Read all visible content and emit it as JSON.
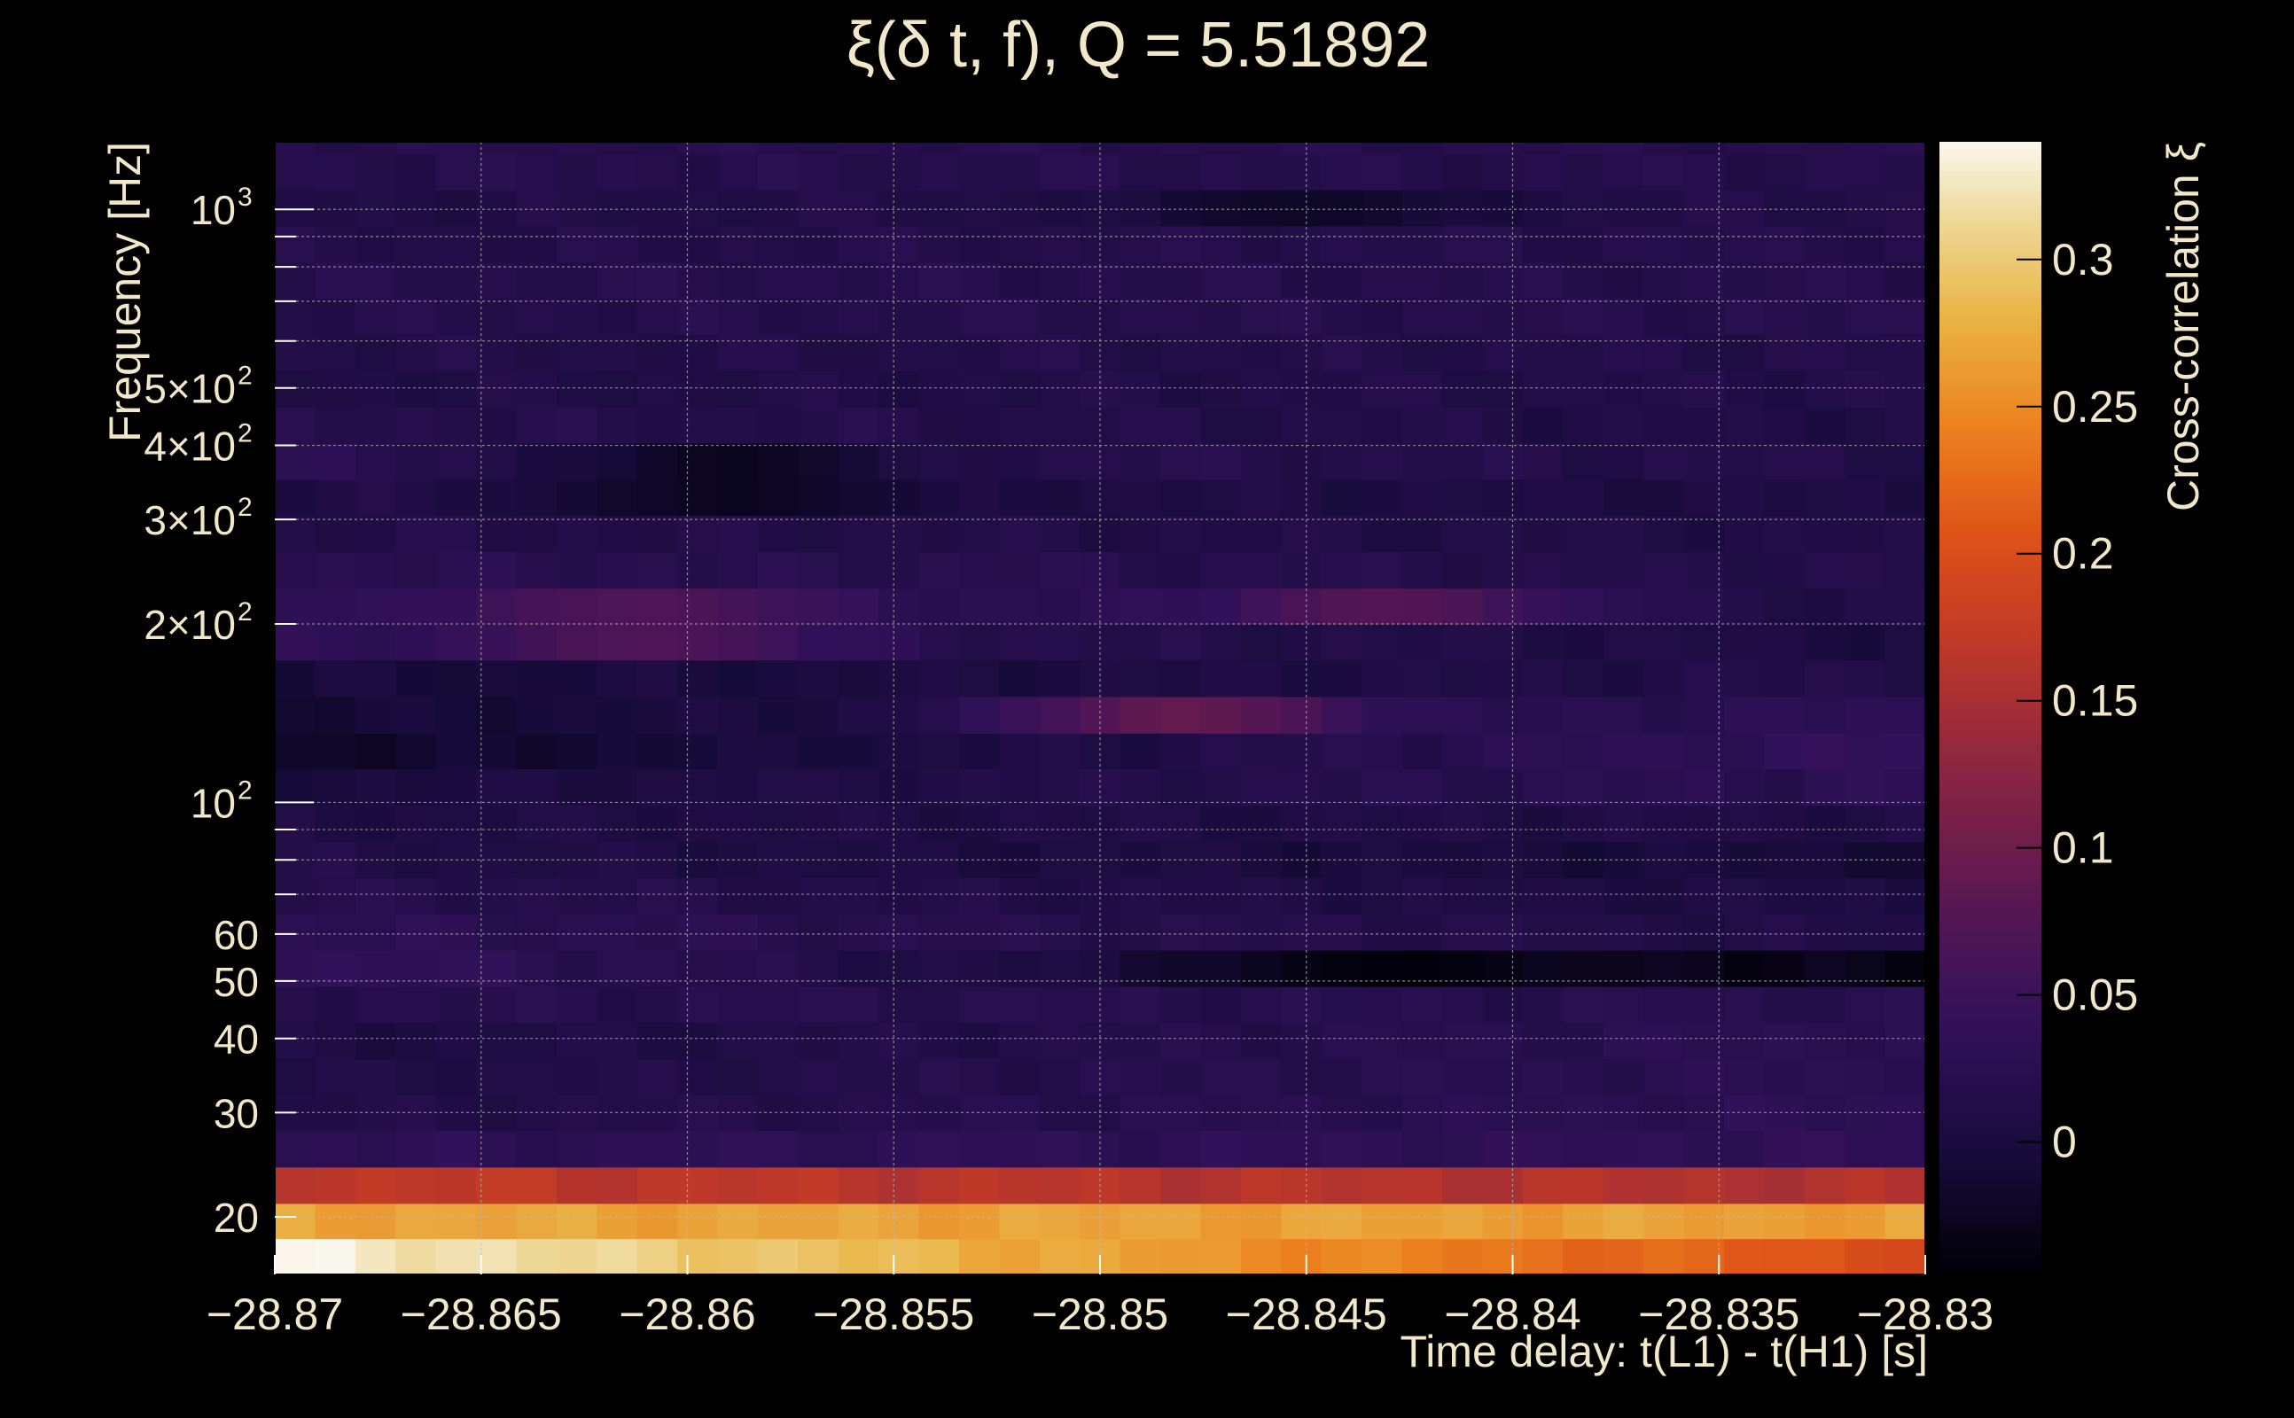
{
  "chart_data": {
    "type": "heatmap",
    "title": "ξ(δ t, f), Q = 5.51892",
    "xlabel": "Time delay: t(L1) - t(H1) [s]",
    "ylabel": "Frequency [Hz]",
    "zlabel": "Cross-correlation ξ",
    "x_range": [
      -28.87,
      -28.83
    ],
    "y_range": [
      16,
      1300
    ],
    "y_scale": "log",
    "z_range": [
      -0.045,
      0.34
    ],
    "grid": true,
    "x_ticks": [
      -28.87,
      -28.865,
      -28.86,
      -28.855,
      -28.85,
      -28.845,
      -28.84,
      -28.835,
      -28.83
    ],
    "x_tick_labels": [
      "−28.87",
      "−28.865",
      "−28.86",
      "−28.855",
      "−28.85",
      "−28.845",
      "−28.84",
      "−28.835",
      "−28.83"
    ],
    "y_tick_labels": [
      {
        "value": 20,
        "label": "20"
      },
      {
        "value": 30,
        "label": "30"
      },
      {
        "value": 40,
        "label": "40"
      },
      {
        "value": 50,
        "label": "50"
      },
      {
        "value": 60,
        "label": "60"
      },
      {
        "value": 100,
        "label": "10",
        "sup": "2"
      },
      {
        "value": 200,
        "label": "2×10",
        "sup": "2"
      },
      {
        "value": 300,
        "label": "3×10",
        "sup": "2"
      },
      {
        "value": 400,
        "label": "4×10",
        "sup": "2"
      },
      {
        "value": 500,
        "label": "5×10",
        "sup": "2"
      },
      {
        "value": 1000,
        "label": "10",
        "sup": "3"
      }
    ],
    "colorbar_ticks": [
      {
        "value": 0,
        "label": "0"
      },
      {
        "value": 0.05,
        "label": "0.05"
      },
      {
        "value": 0.1,
        "label": "0.1"
      },
      {
        "value": 0.15,
        "label": "0.15"
      },
      {
        "value": 0.2,
        "label": "0.2"
      },
      {
        "value": 0.25,
        "label": "0.25"
      },
      {
        "value": 0.3,
        "label": "0.3"
      }
    ],
    "x_bins": 41,
    "frequency_rows": [
      {
        "f_low": 16.0,
        "f_high": 18.4,
        "start": 0.335,
        "end": 0.2
      },
      {
        "f_low": 18.4,
        "f_high": 21.1,
        "start": 0.27,
        "end": 0.265
      },
      {
        "f_low": 21.1,
        "f_high": 24.3,
        "start": 0.17,
        "end": 0.155
      },
      {
        "f_low": 24.3,
        "f_high": 28.0,
        "start": 0.03,
        "end": 0.035
      },
      {
        "f_low": 28.0,
        "f_high": 32.2,
        "start": 0.012,
        "end": 0.03
      },
      {
        "f_low": 32.2,
        "f_high": 37.0,
        "start": 0.01,
        "end": 0.028
      },
      {
        "f_low": 37.0,
        "f_high": 42.6,
        "start": 0.005,
        "end": 0.028
      },
      {
        "f_low": 42.6,
        "f_high": 49.0,
        "start": 0.02,
        "end": 0.022
      },
      {
        "f_low": 49.0,
        "f_high": 56.4,
        "start": 0.04,
        "end": -0.035
      },
      {
        "f_low": 56.4,
        "f_high": 64.9,
        "start": 0.03,
        "end": 0.01
      },
      {
        "f_low": 64.9,
        "f_high": 74.7,
        "start": 0.02,
        "end": 0.005
      },
      {
        "f_low": 74.7,
        "f_high": 86.0,
        "start": 0.012,
        "end": -0.005
      },
      {
        "f_low": 86.0,
        "f_high": 99.0,
        "start": 0.008,
        "end": 0.01
      },
      {
        "f_low": 99.0,
        "f_high": 114.0,
        "start": 0.0,
        "end": 0.03
      },
      {
        "f_low": 114.0,
        "f_high": 131.0,
        "start": -0.02,
        "end": 0.04
      },
      {
        "f_low": 131.0,
        "f_high": 151.0,
        "start": -0.01,
        "end": 0.03
      },
      {
        "f_low": 151.0,
        "f_high": 174.0,
        "start": -0.005,
        "end": 0.015
      },
      {
        "f_low": 174.0,
        "f_high": 200.0,
        "start": 0.03,
        "end": 0.005
      },
      {
        "f_low": 200.0,
        "f_high": 230.0,
        "start": 0.035,
        "end": 0.01
      },
      {
        "f_low": 230.0,
        "f_high": 265.0,
        "start": 0.025,
        "end": 0.015
      },
      {
        "f_low": 265.0,
        "f_high": 305.0,
        "start": 0.015,
        "end": 0.01
      },
      {
        "f_low": 305.0,
        "f_high": 351.0,
        "start": 0.01,
        "end": 0.005
      },
      {
        "f_low": 351.0,
        "f_high": 404.0,
        "start": 0.025,
        "end": 0.015
      },
      {
        "f_low": 404.0,
        "f_high": 465.0,
        "start": 0.02,
        "end": 0.01
      },
      {
        "f_low": 465.0,
        "f_high": 535.0,
        "start": 0.01,
        "end": 0.015
      },
      {
        "f_low": 535.0,
        "f_high": 616.0,
        "start": 0.015,
        "end": 0.015
      },
      {
        "f_low": 616.0,
        "f_high": 709.0,
        "start": 0.018,
        "end": 0.02
      },
      {
        "f_low": 709.0,
        "f_high": 816.0,
        "start": 0.02,
        "end": 0.018
      },
      {
        "f_low": 816.0,
        "f_high": 939.0,
        "start": 0.015,
        "end": 0.02
      },
      {
        "f_low": 939.0,
        "f_high": 1080.0,
        "start": 0.012,
        "end": 0.015
      },
      {
        "f_low": 1080.0,
        "f_high": 1243.0,
        "start": 0.02,
        "end": 0.018
      },
      {
        "f_low": 1243.0,
        "f_high": 1300.0,
        "start": 0.02,
        "end": 0.02
      }
    ],
    "hotspots": [
      {
        "x": -28.861,
        "f_low": 174.0,
        "f_high": 230.0,
        "value": 0.07
      },
      {
        "x": -28.843,
        "f_low": 200.0,
        "f_high": 230.0,
        "value": 0.075
      },
      {
        "x": -28.848,
        "f_low": 131.0,
        "f_high": 151.0,
        "value": 0.09
      },
      {
        "x": -28.843,
        "f_low": 49.0,
        "f_high": 56.4,
        "value": -0.04
      },
      {
        "x": -28.859,
        "f_low": 305.0,
        "f_high": 404.0,
        "value": -0.025
      },
      {
        "x": -28.845,
        "f_low": 900.0,
        "f_high": 1100.0,
        "value": -0.02
      }
    ]
  }
}
